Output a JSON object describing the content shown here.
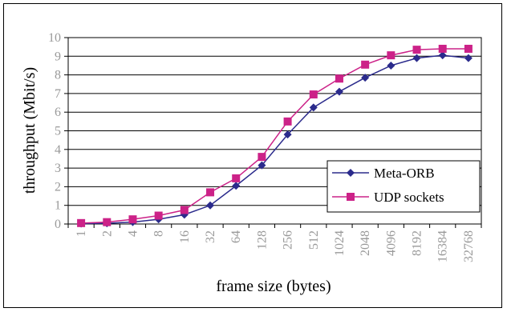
{
  "chart_data": {
    "type": "line",
    "xlabel": "frame size (bytes)",
    "ylabel": "throughput (Mbit/s)",
    "ylim": [
      0,
      10
    ],
    "yticks": [
      "0",
      "1",
      "2",
      "3",
      "4",
      "5",
      "6",
      "7",
      "8",
      "9",
      "10"
    ],
    "categories": [
      "1",
      "2",
      "4",
      "8",
      "16",
      "32",
      "64",
      "128",
      "256",
      "512",
      "1024",
      "2048",
      "4096",
      "8192",
      "16384",
      "32768"
    ],
    "grid": "horizontal",
    "legend_position": "right-bottom",
    "series": [
      {
        "name": "Meta-ORB",
        "color": "#2b2b8c",
        "marker": "diamond",
        "values": [
          0.02,
          0.04,
          0.1,
          0.25,
          0.5,
          1.0,
          2.05,
          3.15,
          4.8,
          6.25,
          7.1,
          7.85,
          8.5,
          8.9,
          9.05,
          8.9
        ]
      },
      {
        "name": "UDP sockets",
        "color": "#cc2288",
        "marker": "square",
        "values": [
          0.05,
          0.1,
          0.25,
          0.45,
          0.75,
          1.7,
          2.45,
          3.6,
          5.5,
          6.95,
          7.8,
          8.55,
          9.05,
          9.35,
          9.4,
          9.4
        ]
      }
    ]
  }
}
